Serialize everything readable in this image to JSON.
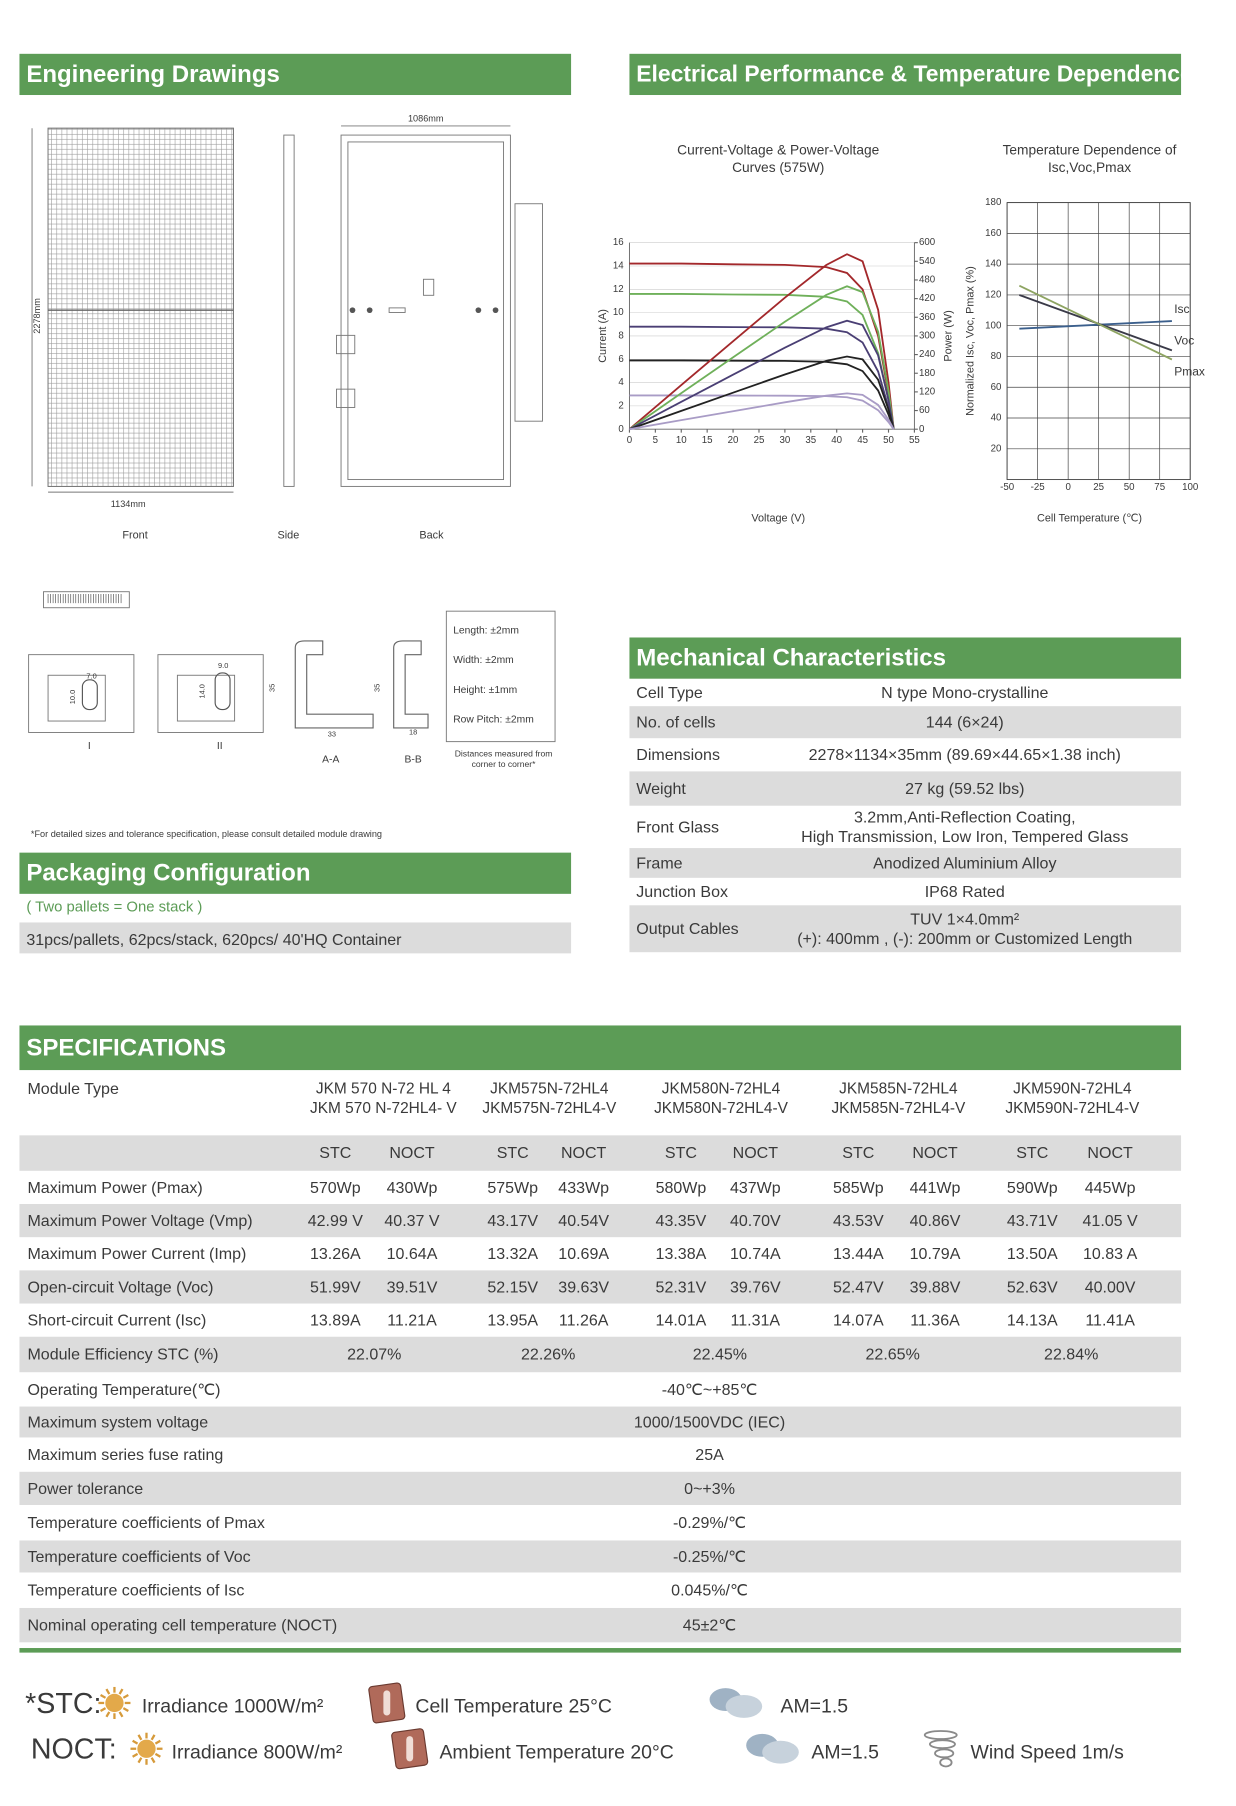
{
  "engineering": {
    "title": "Engineering Drawings",
    "width": "1086mm",
    "length": "2278mm",
    "frame_width": "1134mm",
    "views": [
      "Front",
      "Side",
      "Back"
    ],
    "tolerances": [
      "Length: ±2mm",
      "Width: ±2mm",
      "Height: ±1mm",
      "Row Pitch: ±2mm"
    ],
    "tolerance_note": [
      "Distances measured from",
      "corner to corner*"
    ],
    "sections": [
      "I",
      "II",
      "A-A",
      "B-B"
    ],
    "dimensions": [
      "7.0",
      "10.0",
      "9.0",
      "14.0",
      "35",
      "33",
      "35",
      "18"
    ],
    "footnote": "*For detailed sizes and tolerance specification, please consult detailed module drawing"
  },
  "electrical": {
    "title": "Electrical Performance & Temperature Dependence"
  },
  "chart_data": [
    {
      "type": "line",
      "title": [
        "Current-Voltage & Power-Voltage",
        "Curves (575W)"
      ],
      "x_label": "Voltage (V)",
      "y_label": "Current (A)",
      "y2_label": "Power (W)",
      "x": [
        0,
        10,
        20,
        30,
        38,
        42,
        45,
        48,
        50,
        51
      ],
      "xlim": [
        0,
        55
      ],
      "xticks": [
        0,
        5,
        10,
        15,
        20,
        25,
        30,
        35,
        40,
        45,
        50,
        55
      ],
      "ylim": [
        0,
        16
      ],
      "yticks": [
        0,
        2,
        4,
        6,
        8,
        10,
        12,
        14,
        16
      ],
      "y2lim": [
        0,
        600
      ],
      "y2ticks": [
        0,
        60,
        120,
        180,
        240,
        300,
        360,
        420,
        480,
        540,
        600
      ],
      "grid": true,
      "series": [
        {
          "color": "#a3282b",
          "values": [
            14.2,
            14.2,
            14.14,
            14.1,
            13.9,
            13.4,
            12.0,
            8.0,
            3.0,
            0
          ]
        },
        {
          "color": "#6fb05a",
          "values": [
            11.6,
            11.6,
            11.55,
            11.52,
            11.36,
            10.95,
            9.8,
            6.53,
            2.45,
            0
          ]
        },
        {
          "color": "#4a3f74",
          "values": [
            8.8,
            8.8,
            8.76,
            8.74,
            8.62,
            8.31,
            7.44,
            4.95,
            1.86,
            0
          ]
        },
        {
          "color": "#222222",
          "values": [
            5.9,
            5.9,
            5.88,
            5.86,
            5.78,
            5.57,
            4.99,
            3.32,
            1.25,
            0
          ]
        },
        {
          "color": "#a99cc6",
          "values": [
            2.9,
            2.9,
            2.89,
            2.88,
            2.84,
            2.74,
            2.45,
            1.63,
            0.61,
            0
          ]
        },
        {
          "color": "#a3282b",
          "axis": "y2",
          "values": [
            0,
            142,
            282.8,
            423,
            528.2,
            562.8,
            540,
            384,
            150,
            0
          ]
        },
        {
          "color": "#6fb05a",
          "axis": "y2",
          "values": [
            0,
            116,
            231,
            345.6,
            431.7,
            459.9,
            441,
            313.4,
            122.5,
            0
          ]
        },
        {
          "color": "#4a3f74",
          "axis": "y2",
          "values": [
            0,
            88,
            175.2,
            262.2,
            327.6,
            349,
            334.8,
            237.6,
            93,
            0
          ]
        },
        {
          "color": "#222222",
          "axis": "y2",
          "values": [
            0,
            59,
            117.6,
            175.8,
            219.6,
            233.9,
            224.6,
            159.4,
            62.5,
            0
          ]
        },
        {
          "color": "#a99cc6",
          "axis": "y2",
          "values": [
            0,
            29,
            57.8,
            86.4,
            107.9,
            115.1,
            110.3,
            78.2,
            30.5,
            0
          ]
        }
      ]
    },
    {
      "type": "line",
      "title": [
        "Temperature Dependence of",
        "Isc,Voc,Pmax"
      ],
      "x_label": "Cell Temperature (℃)",
      "y_label": "Normalized Isc, Voc, Pmax (%)",
      "x": [
        -40,
        85
      ],
      "xlim": [
        -50,
        100
      ],
      "xticks": [
        -50,
        -25,
        0,
        25,
        50,
        75,
        100
      ],
      "ylim": [
        0,
        180
      ],
      "yticks": [
        20,
        40,
        60,
        80,
        100,
        120,
        140,
        160,
        180
      ],
      "grid": true,
      "series": [
        {
          "name": "Isc",
          "color": "#3b5f8c",
          "values": [
            98,
            103
          ]
        },
        {
          "name": "Voc",
          "color": "#3a3a48",
          "values": [
            120,
            84
          ]
        },
        {
          "name": "Pmax",
          "color": "#8ea462",
          "values": [
            126,
            78
          ]
        }
      ]
    }
  ],
  "mechanical": {
    "title": "Mechanical Characteristics",
    "rows": [
      {
        "label": "Cell  Type",
        "lines": [
          "N type Mono-crystalline"
        ]
      },
      {
        "label": "No. of cells",
        "lines": [
          "144 (6×24)"
        ]
      },
      {
        "label": "Dimensions",
        "lines": [
          "2278×1134×35mm (89.69×44.65×1.38 inch)"
        ]
      },
      {
        "label": "Weight",
        "lines": [
          "27 kg (59.52 lbs)"
        ]
      },
      {
        "label": "Front Glass",
        "lines": [
          "3.2mm,Anti-Reflection Coating,",
          "High Transmission, Low Iron, Tempered Glass"
        ]
      },
      {
        "label": "Frame",
        "lines": [
          "Anodized Aluminium Alloy"
        ]
      },
      {
        "label": "Junction Box",
        "lines": [
          "IP68 Rated"
        ]
      },
      {
        "label": "Output Cables",
        "lines": [
          "TUV  1×4.0mm²",
          "(+): 400mm , (-): 200mm or Customized Length"
        ]
      }
    ]
  },
  "packaging": {
    "title": "Packaging Configuration",
    "note": "( Two pallets = One stack )",
    "text": "31pcs/pallets, 62pcs/stack, 620pcs/ 40'HQ Container"
  },
  "specifications": {
    "title": "SPECIFICATIONS",
    "module_label": "Module Type",
    "models": [
      [
        "JKM 570 N-72 HL 4",
        "JKM 570 N-72HL4- V"
      ],
      [
        "JKM575N-72HL4",
        "JKM575N-72HL4-V"
      ],
      [
        "JKM580N-72HL4",
        "JKM580N-72HL4-V"
      ],
      [
        "JKM585N-72HL4",
        "JKM585N-72HL4-V"
      ],
      [
        "JKM590N-72HL4",
        "JKM590N-72HL4-V"
      ]
    ],
    "conditions": [
      "STC",
      "NOCT"
    ],
    "rows": [
      {
        "label": "Maximum Power (Pmax)",
        "values": [
          "570Wp",
          "430Wp",
          "575Wp",
          "433Wp",
          "580Wp",
          "437Wp",
          "585Wp",
          "441Wp",
          "590Wp",
          "445Wp"
        ]
      },
      {
        "label": "Maximum Power Voltage (Vmp)",
        "values": [
          "42.99 V",
          "40.37 V",
          "43.17V",
          "40.54V",
          "43.35V",
          "40.70V",
          "43.53V",
          "40.86V",
          "43.71V",
          "41.05 V"
        ]
      },
      {
        "label": "Maximum Power Current (Imp)",
        "values": [
          "13.26A",
          "10.64A",
          "13.32A",
          "10.69A",
          "13.38A",
          "10.74A",
          "13.44A",
          "10.79A",
          "13.50A",
          "10.83 A"
        ]
      },
      {
        "label": "Open-circuit Voltage (Voc)",
        "values": [
          "51.99V",
          "39.51V",
          "52.15V",
          "39.63V",
          "52.31V",
          "39.76V",
          "52.47V",
          "39.88V",
          "52.63V",
          "40.00V"
        ]
      },
      {
        "label": "Short-circuit Current (Isc)",
        "values": [
          "13.89A",
          "11.21A",
          "13.95A",
          "11.26A",
          "14.01A",
          "11.31A",
          "14.07A",
          "11.36A",
          "14.13A",
          "11.41A"
        ]
      }
    ],
    "efficiency": {
      "label": "Module Efficiency STC (%)",
      "values": [
        "22.07%",
        "22.26%",
        "22.45%",
        "22.65%",
        "22.84%"
      ]
    },
    "common": [
      {
        "label": "Operating Temperature(℃)",
        "value": "-40℃~+85℃"
      },
      {
        "label": "Maximum system voltage",
        "value": "1000/1500VDC (IEC)"
      },
      {
        "label": "Maximum series fuse rating",
        "value": "25A"
      },
      {
        "label": "Power tolerance",
        "value": "0~+3%"
      },
      {
        "label": "Temperature coefficients of Pmax",
        "value": "-0.29%/℃"
      },
      {
        "label": "Temperature coefficients of Voc",
        "value": "-0.25%/℃"
      },
      {
        "label": "Temperature coefficients of Isc",
        "value": "0.045%/℃"
      },
      {
        "label": "Nominal operating cell temperature  (NOCT)",
        "value": "45±2℃"
      }
    ]
  },
  "legend": {
    "stc": {
      "label": "*STC:",
      "items": [
        "Irradiance 1000W/m²",
        "Cell Temperature 25°C",
        "AM=1.5"
      ]
    },
    "noct": {
      "label": "NOCT:",
      "items": [
        "Irradiance 800W/m²",
        "Ambient Temperature 20°C",
        "AM=1.5",
        "Wind Speed 1m/s"
      ]
    }
  }
}
